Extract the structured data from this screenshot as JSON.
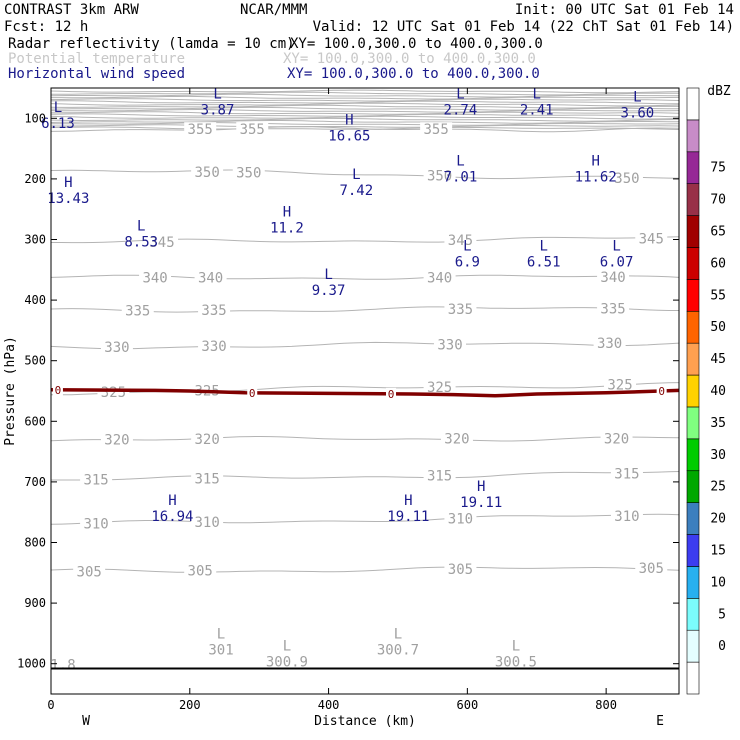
{
  "header": {
    "model": "CONTRAST  3km ARW",
    "org": "NCAR/MMM",
    "init": "Init: 00 UTC Sat 01 Feb 14",
    "fcst": "Fcst:   12 h",
    "valid": "Valid: 12 UTC Sat 01 Feb 14 (22 ChT Sat 01 Feb 14)",
    "fields": [
      {
        "name": "Radar reflectivity (lamda = 10 cm)",
        "xy": "XY= 100.0,300.0 to 400.0,300.0",
        "color": "#000000"
      },
      {
        "name": "Potential temperature",
        "xy": "XY= 100.0,300.0 to 400.0,300.0",
        "color": "#c8c8c8"
      },
      {
        "name": "Horizontal wind speed",
        "xy": "XY= 100.0,300.0 to 400.0,300.0",
        "color": "#1a1a8c"
      }
    ]
  },
  "chart_data": {
    "type": "contour-cross-section",
    "xlabel": "Distance (km)",
    "ylabel": "Pressure (hPa)",
    "xlim": [
      0,
      905
    ],
    "ylim": [
      1050,
      50
    ],
    "xticks": [
      0,
      200,
      400,
      600,
      800
    ],
    "yticks": [
      100,
      200,
      300,
      400,
      500,
      600,
      700,
      800,
      900,
      1000
    ],
    "x_end_labels": {
      "left": "W",
      "right": "E"
    },
    "theta_lines": [
      {
        "value": 355,
        "p_left": 118,
        "p_right": 118,
        "labels": [
          {
            "x": 215,
            "text": "355"
          },
          {
            "x": 290,
            "text": "355"
          },
          {
            "x": 555,
            "text": "355"
          }
        ]
      },
      {
        "value": 350,
        "p_left": 185,
        "p_right": 200,
        "labels": [
          {
            "x": 225,
            "text": "350"
          },
          {
            "x": 285,
            "text": "350"
          },
          {
            "x": 560,
            "text": "350"
          },
          {
            "x": 830,
            "text": "350"
          }
        ]
      },
      {
        "value": 345,
        "p_left": 305,
        "p_right": 298,
        "labels": [
          {
            "x": 160,
            "text": "345"
          },
          {
            "x": 590,
            "text": "345"
          },
          {
            "x": 865,
            "text": "345"
          }
        ]
      },
      {
        "value": 340,
        "p_left": 363,
        "p_right": 362,
        "labels": [
          {
            "x": 150,
            "text": "340"
          },
          {
            "x": 230,
            "text": "340"
          },
          {
            "x": 560,
            "text": "340"
          },
          {
            "x": 810,
            "text": "340"
          }
        ]
      },
      {
        "value": 335,
        "p_left": 418,
        "p_right": 413,
        "labels": [
          {
            "x": 125,
            "text": "335"
          },
          {
            "x": 235,
            "text": "335"
          },
          {
            "x": 590,
            "text": "335"
          },
          {
            "x": 810,
            "text": "335"
          }
        ]
      },
      {
        "value": 330,
        "p_left": 478,
        "p_right": 470,
        "labels": [
          {
            "x": 95,
            "text": "330"
          },
          {
            "x": 235,
            "text": "330"
          },
          {
            "x": 575,
            "text": "330"
          },
          {
            "x": 805,
            "text": "330"
          }
        ]
      },
      {
        "value": 325,
        "p_left": 553,
        "p_right": 538,
        "labels": [
          {
            "x": 90,
            "text": "325"
          },
          {
            "x": 225,
            "text": "325"
          },
          {
            "x": 560,
            "text": "325"
          },
          {
            "x": 820,
            "text": "325"
          }
        ]
      },
      {
        "value": 320,
        "p_left": 630,
        "p_right": 628,
        "labels": [
          {
            "x": 95,
            "text": "320"
          },
          {
            "x": 225,
            "text": "320"
          },
          {
            "x": 585,
            "text": "320"
          },
          {
            "x": 815,
            "text": "320"
          }
        ]
      },
      {
        "value": 315,
        "p_left": 697,
        "p_right": 685,
        "labels": [
          {
            "x": 65,
            "text": "315"
          },
          {
            "x": 225,
            "text": "315"
          },
          {
            "x": 560,
            "text": "315"
          },
          {
            "x": 830,
            "text": "315"
          }
        ]
      },
      {
        "value": 310,
        "p_left": 770,
        "p_right": 755,
        "labels": [
          {
            "x": 65,
            "text": "310"
          },
          {
            "x": 225,
            "text": "310"
          },
          {
            "x": 590,
            "text": "310"
          },
          {
            "x": 830,
            "text": "310"
          }
        ]
      },
      {
        "value": 305,
        "p_left": 848,
        "p_right": 842,
        "labels": [
          {
            "x": 55,
            "text": "305"
          },
          {
            "x": 215,
            "text": "305"
          },
          {
            "x": 590,
            "text": "305"
          },
          {
            "x": 865,
            "text": "305"
          }
        ]
      }
    ],
    "theta_min_labels": [
      {
        "x": 0,
        "p": 990,
        "letter": "",
        "value": "1.8"
      },
      {
        "x": 245,
        "p": 965,
        "letter": "L",
        "value": "301"
      },
      {
        "x": 340,
        "p": 985,
        "letter": "L",
        "value": "300.9"
      },
      {
        "x": 500,
        "p": 965,
        "letter": "L",
        "value": "300.7"
      },
      {
        "x": 670,
        "p": 985,
        "letter": "L",
        "value": "300.5"
      }
    ],
    "wind_extrema": [
      {
        "x": 240,
        "p": 67,
        "letter": "L",
        "value": "3.87"
      },
      {
        "x": 590,
        "p": 67,
        "letter": "L",
        "value": "2.74"
      },
      {
        "x": 700,
        "p": 67,
        "letter": "L",
        "value": "2.41"
      },
      {
        "x": 845,
        "p": 72,
        "letter": "L",
        "value": "3.60"
      },
      {
        "x": 10,
        "p": 90,
        "letter": "L",
        "value": "6.13"
      },
      {
        "x": 430,
        "p": 110,
        "letter": "H",
        "value": "16.65"
      },
      {
        "x": 25,
        "p": 213,
        "letter": "H",
        "value": "13.43"
      },
      {
        "x": 440,
        "p": 200,
        "letter": "L",
        "value": "7.42"
      },
      {
        "x": 590,
        "p": 178,
        "letter": "L",
        "value": "7.01"
      },
      {
        "x": 785,
        "p": 178,
        "letter": "H",
        "value": "11.62"
      },
      {
        "x": 130,
        "p": 285,
        "letter": "L",
        "value": "8.53"
      },
      {
        "x": 340,
        "p": 262,
        "letter": "H",
        "value": "11.2"
      },
      {
        "x": 600,
        "p": 318,
        "letter": "L",
        "value": "6.9"
      },
      {
        "x": 710,
        "p": 318,
        "letter": "L",
        "value": "6.51"
      },
      {
        "x": 815,
        "p": 318,
        "letter": "L",
        "value": "6.07"
      },
      {
        "x": 400,
        "p": 365,
        "letter": "L",
        "value": "9.37"
      },
      {
        "x": 175,
        "p": 738,
        "letter": "H",
        "value": "16.94"
      },
      {
        "x": 515,
        "p": 738,
        "letter": "H",
        "value": "19.11"
      },
      {
        "x": 620,
        "p": 715,
        "letter": "H",
        "value": "19.11"
      }
    ],
    "freezing_level": {
      "label": "0",
      "color": "#800000",
      "points": [
        [
          0,
          548
        ],
        [
          150,
          549
        ],
        [
          200,
          550
        ],
        [
          280,
          553
        ],
        [
          400,
          554
        ],
        [
          520,
          555
        ],
        [
          580,
          556
        ],
        [
          640,
          558
        ],
        [
          700,
          555
        ],
        [
          800,
          553
        ],
        [
          905,
          549
        ]
      ],
      "labels_x": [
        10,
        290,
        490,
        880
      ]
    },
    "surface_pressure": [
      [
        0,
        1008
      ],
      [
        905,
        1008
      ]
    ],
    "colorbar": {
      "title": "dBZ",
      "levels": [
        "0",
        "5",
        "10",
        "15",
        "20",
        "25",
        "30",
        "35",
        "40",
        "45",
        "50",
        "55",
        "60",
        "65",
        "70",
        "75"
      ],
      "colors": [
        "#ffffff",
        "#e4feff",
        "#7bfcfc",
        "#27b0f0",
        "#3c3cf0",
        "#3c7fbe",
        "#00a800",
        "#00cc00",
        "#80ff80",
        "#ffd200",
        "#ffa050",
        "#ff6400",
        "#ff0000",
        "#cc0000",
        "#a00000",
        "#983048",
        "#962896",
        "#c88cc8",
        "#ffffff"
      ]
    }
  }
}
